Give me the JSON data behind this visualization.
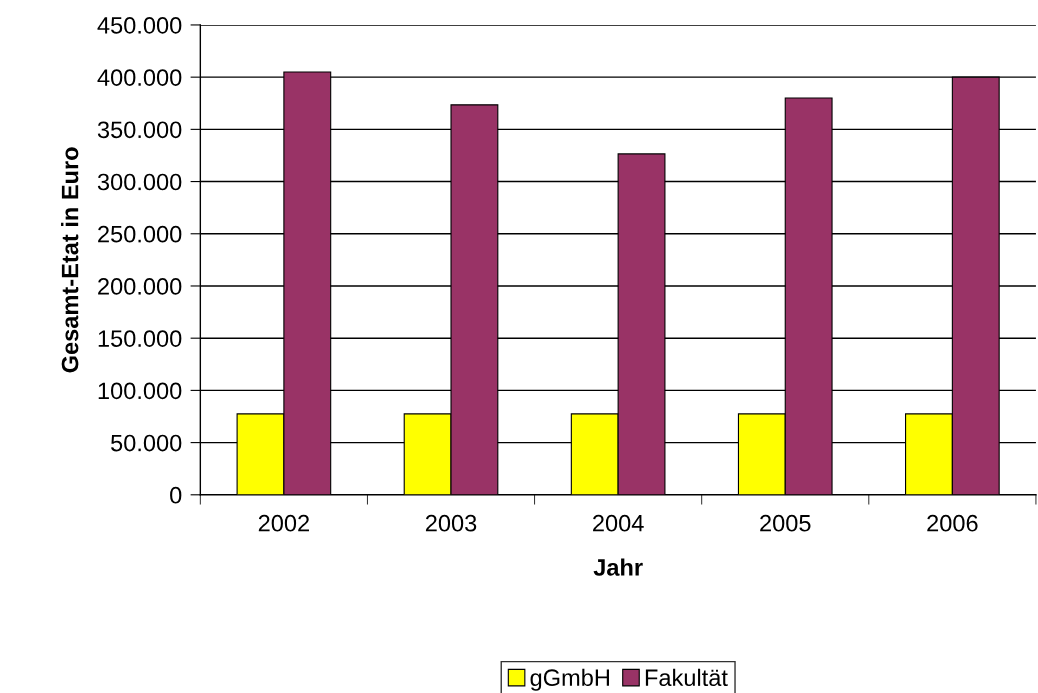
{
  "chart_data": {
    "type": "bar",
    "xlabel": "Jahr",
    "ylabel": "Gesamt-Etat in Euro",
    "categories": [
      "2002",
      "2003",
      "2004",
      "2005",
      "2006"
    ],
    "series": [
      {
        "name": "gGmbH",
        "color": "#ffff00",
        "values": [
          77500,
          77500,
          77500,
          77500,
          77500
        ]
      },
      {
        "name": "Fakultät",
        "color": "#993366",
        "values": [
          405000,
          373500,
          326500,
          380000,
          400000
        ]
      }
    ],
    "ylim": [
      0,
      450000
    ],
    "yticks": [
      0,
      {
        "value": 50000,
        "label": "50.000"
      },
      {
        "value": 100000,
        "label": "100.000"
      },
      {
        "value": 150000,
        "label": "150.000"
      },
      {
        "value": 200000,
        "label": "200.000"
      },
      {
        "value": 250000,
        "label": "250.000"
      },
      {
        "value": 300000,
        "label": "300.000"
      },
      {
        "value": 350000,
        "label": "350.000"
      },
      {
        "value": 400000,
        "label": "400.000"
      },
      {
        "value": 450000,
        "label": "450.000"
      }
    ],
    "grid": "y",
    "legend": "bottom"
  }
}
